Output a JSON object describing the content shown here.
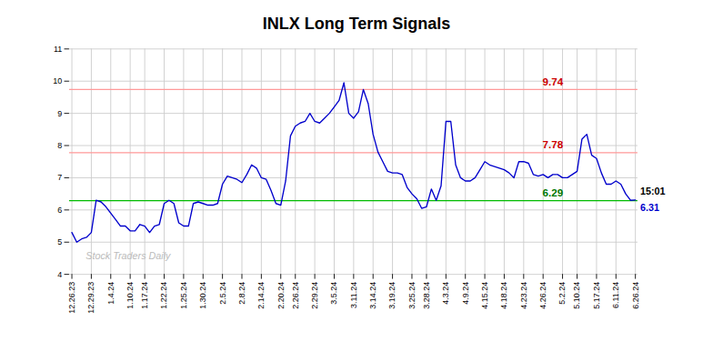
{
  "chart_data": {
    "type": "line",
    "title": "INLX Long Term Signals",
    "categories": [
      "12.26.23",
      null,
      null,
      null,
      "12.29.23",
      null,
      null,
      null,
      "1.4.24",
      null,
      null,
      null,
      "1.10.24",
      null,
      null,
      "1.17.24",
      null,
      null,
      null,
      "1.22.24",
      null,
      null,
      null,
      "1.25.24",
      null,
      null,
      null,
      "1.30.24",
      null,
      null,
      null,
      "2.5.24",
      null,
      null,
      null,
      "2.8.24",
      null,
      null,
      null,
      "2.14.24",
      null,
      null,
      null,
      "2.20.24",
      null,
      null,
      "2.26.24",
      null,
      null,
      null,
      "2.29.24",
      null,
      null,
      null,
      "3.5.24",
      null,
      null,
      null,
      "3.11.24",
      null,
      null,
      null,
      "3.14.24",
      null,
      null,
      null,
      "3.19.24",
      null,
      null,
      null,
      "3.25.24",
      null,
      null,
      "3.28.24",
      null,
      null,
      null,
      "4.3.24",
      null,
      null,
      null,
      "4.9.24",
      null,
      null,
      null,
      "4.15.24",
      null,
      null,
      null,
      "4.18.24",
      null,
      null,
      null,
      "4.23.24",
      null,
      null,
      null,
      "4.26.24",
      null,
      null,
      null,
      "5.2.24",
      null,
      null,
      "5.10.24",
      null,
      null,
      null,
      "5.17.24",
      null,
      null,
      null,
      "6.11.24",
      null,
      null,
      null,
      "6.26.24"
    ],
    "values": [
      5.3,
      5.0,
      5.1,
      5.15,
      5.3,
      6.3,
      6.25,
      6.1,
      5.9,
      5.7,
      5.5,
      5.5,
      5.35,
      5.35,
      5.55,
      5.5,
      5.3,
      5.5,
      5.55,
      6.2,
      6.3,
      6.2,
      5.6,
      5.5,
      5.5,
      6.2,
      6.25,
      6.2,
      6.15,
      6.15,
      6.2,
      6.8,
      7.05,
      7.0,
      6.95,
      6.85,
      7.1,
      7.4,
      7.3,
      7.0,
      6.95,
      6.6,
      6.2,
      6.15,
      6.9,
      8.3,
      8.6,
      8.7,
      8.75,
      9.0,
      8.75,
      8.7,
      8.85,
      9.0,
      9.2,
      9.4,
      9.95,
      9.0,
      8.85,
      9.05,
      9.74,
      9.3,
      8.35,
      7.8,
      7.5,
      7.2,
      7.15,
      7.15,
      7.1,
      6.7,
      6.5,
      6.35,
      6.05,
      6.1,
      6.65,
      6.3,
      6.75,
      8.75,
      8.75,
      7.4,
      7.0,
      6.9,
      6.9,
      7.0,
      7.25,
      7.5,
      7.4,
      7.35,
      7.3,
      7.25,
      7.15,
      7.0,
      7.5,
      7.5,
      7.45,
      7.1,
      7.05,
      7.1,
      7.0,
      7.1,
      7.1,
      7.0,
      7.0,
      7.1,
      7.2,
      8.2,
      8.35,
      7.7,
      7.6,
      7.15,
      6.8,
      6.8,
      6.9,
      6.8,
      6.5,
      6.3,
      6.31
    ],
    "color": "#0000cc",
    "ylim": [
      4,
      11
    ],
    "yticks": [
      4,
      5,
      6,
      7,
      8,
      9,
      10,
      11
    ],
    "grid": true,
    "reference_lines": [
      {
        "value": 6.29,
        "color": "#00bb00",
        "label": "6.29",
        "label_color": "#007700"
      },
      {
        "value": 7.78,
        "color": "#ff9999",
        "label": "7.78",
        "label_color": "#cc0000"
      },
      {
        "value": 9.74,
        "color": "#ff9999",
        "label": "9.74",
        "label_color": "#cc0000"
      }
    ],
    "end_labels": [
      {
        "text": "15:01",
        "color": "#000000"
      },
      {
        "text": "6.31",
        "color": "#0000cc"
      }
    ],
    "watermark": {
      "text": "Stock Traders Daily",
      "color": "#bbbbbb"
    }
  }
}
